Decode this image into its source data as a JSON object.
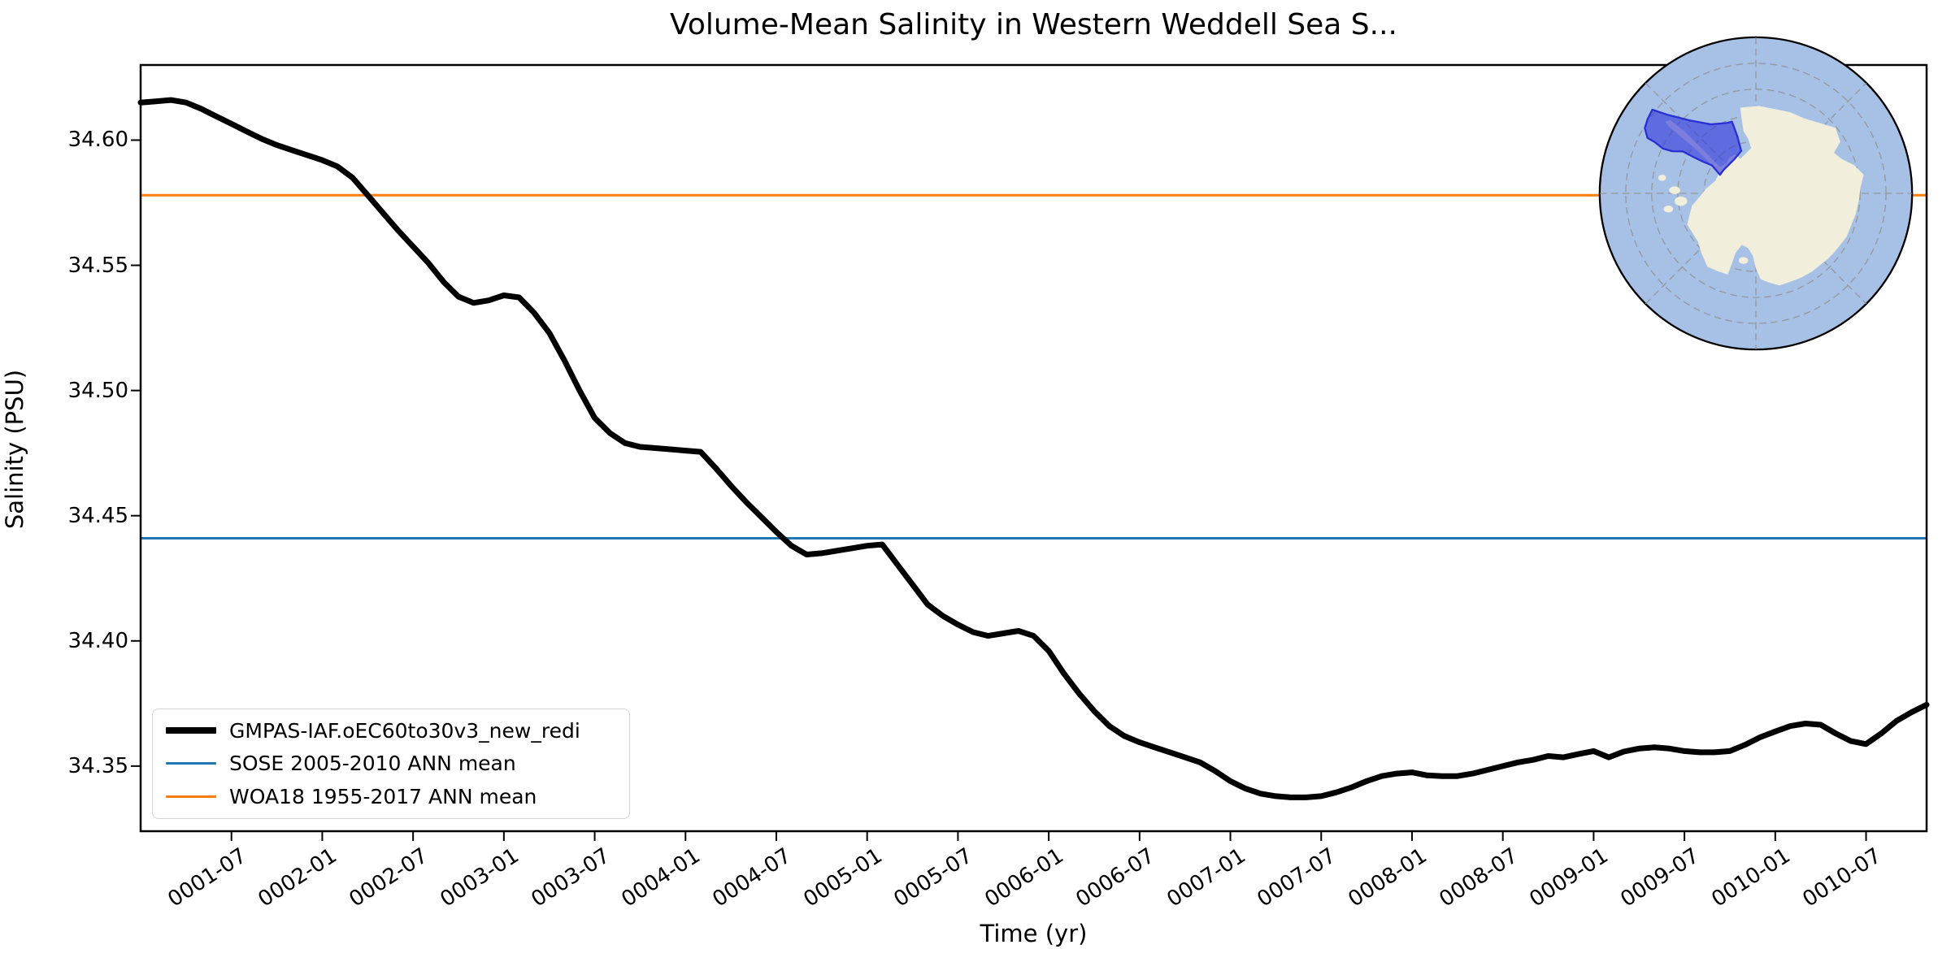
{
  "title": "Volume-Mean Salinity in Western Weddell Sea S...",
  "axes": {
    "x_label": "Time (yr)",
    "y_label": "Salinity (PSU)",
    "y_ticks": [
      {
        "value": 34.6,
        "label": "34.60"
      },
      {
        "value": 34.55,
        "label": "34.55"
      },
      {
        "value": 34.5,
        "label": "34.50"
      },
      {
        "value": 34.45,
        "label": "34.45"
      },
      {
        "value": 34.4,
        "label": "34.40"
      },
      {
        "value": 34.35,
        "label": "34.35"
      }
    ],
    "x_ticks": [
      "0001-07",
      "0002-01",
      "0002-07",
      "0003-01",
      "0003-07",
      "0004-01",
      "0004-07",
      "0005-01",
      "0005-07",
      "0006-01",
      "0006-07",
      "0007-01",
      "0007-07",
      "0008-01",
      "0008-07",
      "0009-01",
      "0009-07",
      "0010-01",
      "0010-07"
    ]
  },
  "legend": {
    "entries": [
      {
        "label": "GMPAS-IAF.oEC60to30v3_new_redi",
        "color": "#000000",
        "thickness": 8
      },
      {
        "label": "SOSE 2005-2010 ANN mean",
        "color": "#1f77b4",
        "thickness": 3
      },
      {
        "label": "WOA18 1955-2017 ANN mean",
        "color": "#ff7f0e",
        "thickness": 3
      }
    ]
  },
  "inset": {
    "ocean_color": "#a6c1e5",
    "land_color": "#f1eedc",
    "highlight_fill": "rgba(47,52,218,0.60)",
    "highlight_outline": "#2a2fd4",
    "graticule_color": "#8f8f8f"
  },
  "chart_data": {
    "type": "line",
    "title": "Volume-Mean Salinity in Western Weddell Sea S...",
    "xlabel": "Time (yr)",
    "ylabel": "Salinity (PSU)",
    "x_start": "0001-01",
    "x_end": "0010-11",
    "x_step_months": 1,
    "ylim": [
      34.324,
      34.63
    ],
    "grid": false,
    "legend_position": "lower left",
    "x_tick_labels": [
      "0001-07",
      "0002-01",
      "0002-07",
      "0003-01",
      "0003-07",
      "0004-01",
      "0004-07",
      "0005-01",
      "0005-07",
      "0006-01",
      "0006-07",
      "0007-01",
      "0007-07",
      "0008-01",
      "0008-07",
      "0009-01",
      "0009-07",
      "0010-01",
      "0010-07"
    ],
    "series": [
      {
        "name": "GMPAS-IAF.oEC60to30v3_new_redi",
        "color": "#000000",
        "linewidth": 7,
        "values": [
          34.615,
          34.6155,
          34.616,
          34.615,
          34.6125,
          34.6095,
          34.6065,
          34.6035,
          34.6005,
          34.598,
          34.596,
          34.594,
          34.592,
          34.5895,
          34.585,
          34.578,
          34.571,
          34.564,
          34.5575,
          34.551,
          34.5435,
          34.5375,
          34.535,
          34.536,
          34.538,
          34.5372,
          34.531,
          34.523,
          34.512,
          34.5,
          34.489,
          34.483,
          34.479,
          34.4775,
          34.477,
          34.4765,
          34.476,
          34.4755,
          34.469,
          34.462,
          34.4555,
          34.4495,
          34.4435,
          34.438,
          34.4345,
          34.435,
          34.436,
          34.437,
          34.438,
          34.4385,
          34.4305,
          34.4225,
          34.4145,
          34.41,
          34.4065,
          34.4035,
          34.402,
          34.403,
          34.404,
          34.402,
          34.396,
          34.387,
          34.379,
          34.372,
          34.366,
          34.362,
          34.3595,
          34.3575,
          34.3555,
          34.3535,
          34.3515,
          34.348,
          34.344,
          34.341,
          34.339,
          34.338,
          34.3375,
          34.3375,
          34.338,
          34.3395,
          34.3415,
          34.344,
          34.346,
          34.347,
          34.3475,
          34.3463,
          34.346,
          34.346,
          34.347,
          34.3485,
          34.35,
          34.3515,
          34.3525,
          34.354,
          34.3535,
          34.3548,
          34.356,
          34.3535,
          34.3558,
          34.357,
          34.3575,
          34.357,
          34.356,
          34.3555,
          34.3555,
          34.356,
          34.3585,
          34.3615,
          34.3638,
          34.366,
          34.367,
          34.3665,
          34.363,
          34.36,
          34.3588,
          34.363,
          34.368,
          34.3715,
          34.3745
        ]
      }
    ],
    "hlines": [
      {
        "name": "SOSE 2005-2010 ANN mean",
        "value": 34.441,
        "color": "#1f77b4",
        "linewidth": 3
      },
      {
        "name": "WOA18 1955-2017 ANN mean",
        "value": 34.578,
        "color": "#ff7f0e",
        "linewidth": 3
      }
    ]
  }
}
